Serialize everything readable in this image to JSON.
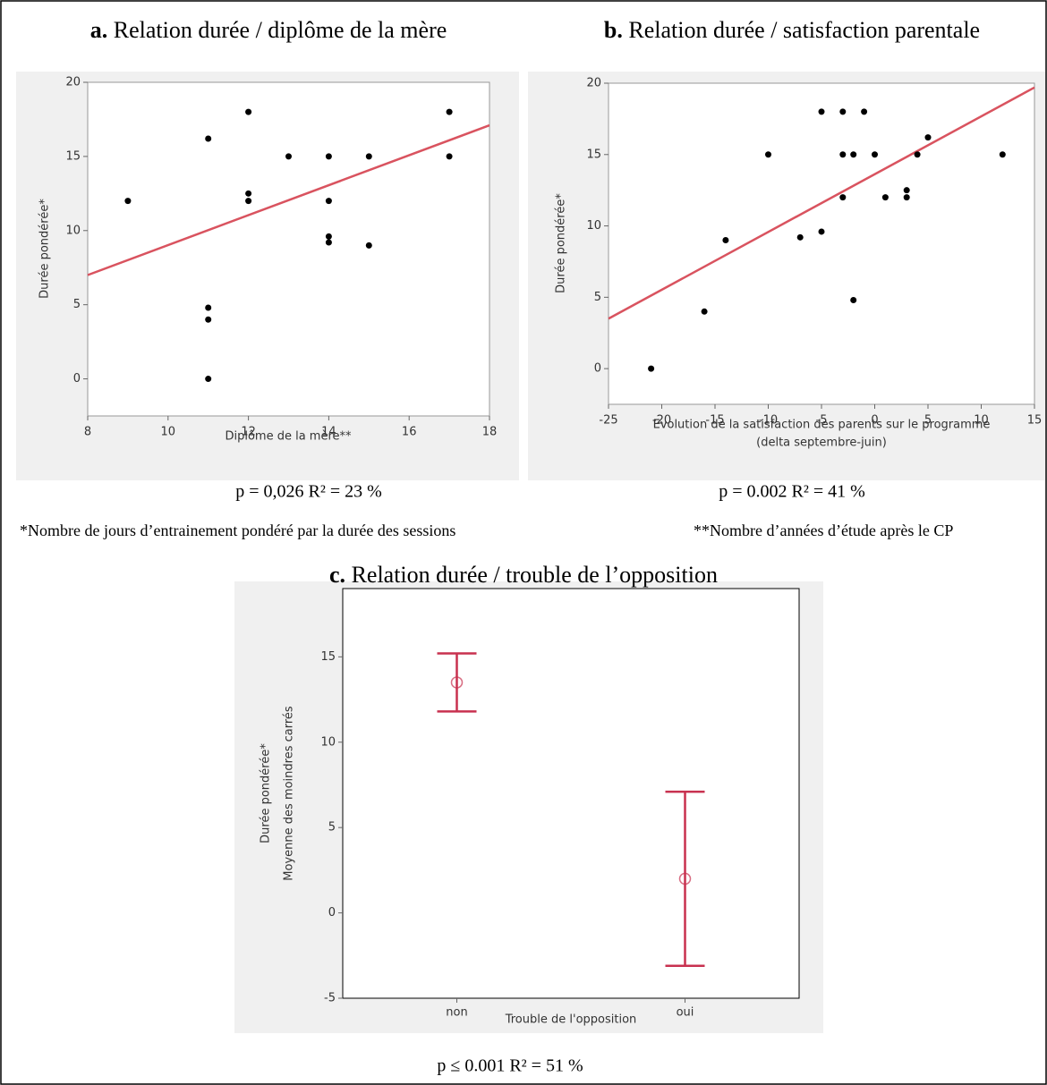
{
  "chart_data": [
    {
      "type": "scatter",
      "panel_label": "a.",
      "title": "Relation durée / diplôme de la mère",
      "x_label": "Diplôme de la mère**",
      "y_label": "Durée pondérée*",
      "annotation": "p = 0,026 R² = 23 %",
      "x": [
        9,
        11,
        11,
        11,
        11,
        12,
        12,
        12,
        13,
        14,
        14,
        14,
        14,
        15,
        15,
        17,
        17
      ],
      "y": [
        12,
        16.2,
        4.8,
        4,
        0,
        18,
        12.5,
        12,
        15,
        15,
        12,
        9.6,
        9.2,
        15,
        9,
        18,
        15
      ],
      "color": "#000000",
      "fit": {
        "x": [
          8,
          18
        ],
        "y": [
          7,
          17.1
        ],
        "color": "#d9535f"
      },
      "xlim": [
        8,
        18
      ],
      "ylim": [
        -2.5,
        20
      ],
      "xticks": [
        8,
        10,
        12,
        14,
        16,
        18
      ],
      "yticks": [
        0,
        5,
        10,
        15,
        20
      ]
    },
    {
      "type": "scatter",
      "panel_label": "b.",
      "title": "Relation durée / satisfaction parentale",
      "x_label": [
        "Evolution de la satisfaction des parents sur le programme",
        "(delta septembre-juin)"
      ],
      "y_label": "Durée pondérée*",
      "annotation": "p = 0.002 R² = 41 %",
      "x": [
        -21,
        -16,
        -14,
        -10,
        -7,
        -5,
        -5,
        -3,
        -3,
        -3,
        -2,
        -2,
        -1,
        0,
        1,
        3,
        3,
        4,
        5,
        12
      ],
      "y": [
        0,
        4,
        9,
        15,
        9.2,
        18,
        9.6,
        18,
        15,
        12,
        15,
        4.8,
        18,
        15,
        12,
        12.5,
        12,
        15,
        16.2,
        15
      ],
      "color": "#000000",
      "fit": {
        "x": [
          -25,
          15
        ],
        "y": [
          3.5,
          19.7
        ],
        "color": "#d9535f"
      },
      "xlim": [
        -25,
        15
      ],
      "ylim": [
        -2.5,
        20
      ],
      "xticks": [
        -25,
        -20,
        -15,
        -10,
        -5,
        0,
        5,
        10,
        15
      ],
      "yticks": [
        0,
        5,
        10,
        15,
        20
      ]
    },
    {
      "type": "errorbar",
      "panel_label": "c.",
      "title": "Relation durée / trouble de l’opposition",
      "x_label": "Trouble de l'opposition",
      "y_label": [
        "Durée pondérée*",
        "Moyenne des moindres carrés"
      ],
      "annotation": "p ≤ 0.001 R² = 51 %",
      "categories": [
        "non",
        "oui"
      ],
      "values": [
        13.5,
        2
      ],
      "errors": [
        1.7,
        5.1
      ],
      "color": "#c8314f",
      "ylim": [
        -5,
        19
      ],
      "yticks": [
        -5,
        0,
        5,
        10,
        15
      ]
    }
  ],
  "notes": [
    "*Nombre de jours d’entrainement pondéré par la durée des sessions",
    "**Nombre d’années d’étude après le CP"
  ]
}
